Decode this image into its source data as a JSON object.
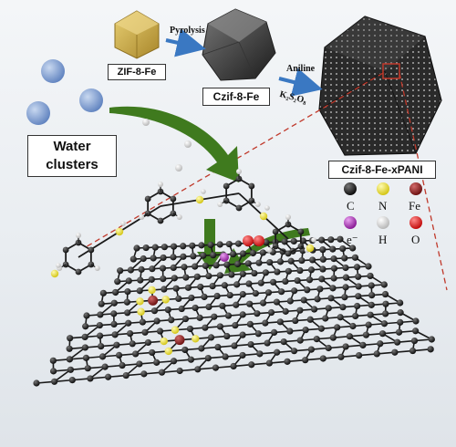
{
  "stages": {
    "precursor": "ZIF-8-Fe",
    "carbonized": "Czif-8-Fe",
    "composite": "Czif-8-Fe-xPANI"
  },
  "steps": {
    "pyrolysis": "Pyrolysis",
    "aniline": "Aniline",
    "oxidant": "K₂S₂O₈"
  },
  "water_clusters": {
    "line1": "Water",
    "line2": "clusters"
  },
  "legend": [
    {
      "symbol": "C",
      "color": "#2b2b2b"
    },
    {
      "symbol": "N",
      "color": "#e6dc2a"
    },
    {
      "symbol": "Fe",
      "color": "#8a1b1b"
    },
    {
      "symbol": "e⁻",
      "color": "#b52fbf"
    },
    {
      "symbol": "H",
      "color": "#e9e9e9"
    },
    {
      "symbol": "O",
      "color": "#e01818"
    }
  ],
  "colors": {
    "zif": "#c9a93e",
    "arrow_blue": "#3a78c2",
    "arrow_green": "#3f7a1e",
    "dash_red": "#c0392b",
    "water": "#7d9ccd",
    "carbon": "#1a1a1a"
  }
}
